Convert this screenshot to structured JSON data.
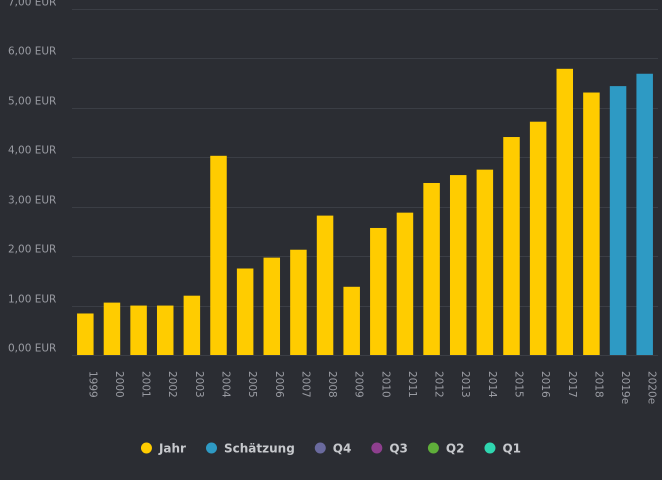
{
  "colors": {
    "background": "#2b2d33",
    "gridline": "#3b3e45",
    "tick_text": "#9a9ca3",
    "legend_text": "#c6c8cc"
  },
  "chart_data": {
    "type": "bar",
    "categories": [
      "1999",
      "2000",
      "2001",
      "2002",
      "2003",
      "2004",
      "2005",
      "2006",
      "2007",
      "2008",
      "2009",
      "2010",
      "2011",
      "2012",
      "2013",
      "2014",
      "2015",
      "2016",
      "2017",
      "2018",
      "2019e",
      "2020e"
    ],
    "values": [
      0.84,
      1.06,
      1.0,
      1.0,
      1.2,
      4.03,
      1.75,
      1.97,
      2.13,
      2.82,
      1.38,
      2.57,
      2.88,
      3.48,
      3.64,
      3.75,
      4.41,
      4.72,
      5.79,
      5.31,
      5.44,
      5.69
    ],
    "bar_series": [
      "Jahr",
      "Jahr",
      "Jahr",
      "Jahr",
      "Jahr",
      "Jahr",
      "Jahr",
      "Jahr",
      "Jahr",
      "Jahr",
      "Jahr",
      "Jahr",
      "Jahr",
      "Jahr",
      "Jahr",
      "Jahr",
      "Jahr",
      "Jahr",
      "Jahr",
      "Jahr",
      "Schätzung",
      "Schätzung"
    ],
    "ylim": [
      0,
      7
    ],
    "yticks": [
      0,
      1,
      2,
      3,
      4,
      5,
      6,
      7
    ],
    "ytick_labels": [
      "0,00 EUR",
      "1,00 EUR",
      "2,00 EUR",
      "3,00 EUR",
      "4,00 EUR",
      "5,00 EUR",
      "6,00 EUR",
      "7,00 EUR"
    ],
    "grid": true,
    "legend_position": "bottom",
    "legend": [
      {
        "name": "Jahr",
        "color": "#ffcc00"
      },
      {
        "name": "Schätzung",
        "color": "#2e9ac4"
      },
      {
        "name": "Q4",
        "color": "#6a6a9e"
      },
      {
        "name": "Q3",
        "color": "#8e3f8e"
      },
      {
        "name": "Q2",
        "color": "#5fae3a"
      },
      {
        "name": "Q1",
        "color": "#2fd6b0"
      }
    ]
  }
}
